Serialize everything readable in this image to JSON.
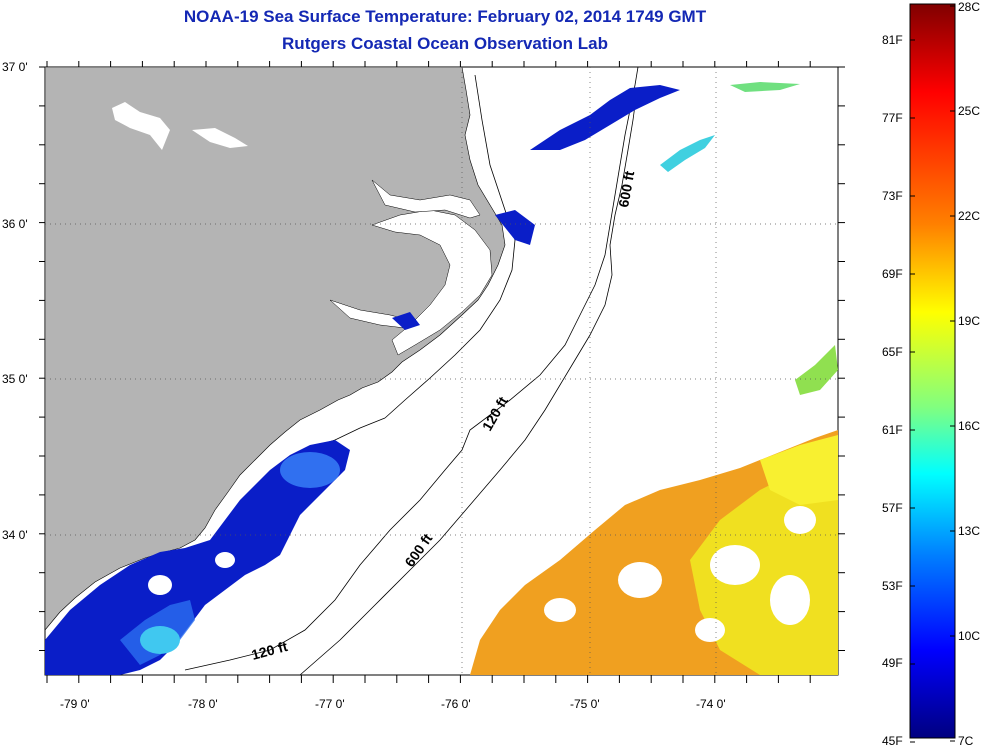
{
  "title": {
    "line1": "NOAA-19 Sea Surface Temperature:  February 02, 2014 1749 GMT",
    "line2": "Rutgers Coastal Ocean Observation Lab"
  },
  "map": {
    "lat_labels": [
      "37 0'",
      "36 0'",
      "35 0'",
      "34 0'"
    ],
    "lon_labels": [
      "-79 0'",
      "-78 0'",
      "-77 0'",
      "-76 0'",
      "-75 0'",
      "-74 0'"
    ],
    "depth_labels": [
      "600 ft",
      "120 ft",
      "600 ft",
      "120 ft"
    ]
  },
  "colorbar": {
    "fahrenheit": [
      "81F",
      "77F",
      "73F",
      "69F",
      "65F",
      "61F",
      "57F",
      "53F",
      "49F",
      "45F"
    ],
    "celsius": [
      "28C",
      "25C",
      "22C",
      "19C",
      "16C",
      "13C",
      "10C",
      "7C"
    ],
    "colors": [
      "#800000",
      "#ff0000",
      "#ff8000",
      "#ffff00",
      "#80ff80",
      "#00ffff",
      "#0080ff",
      "#0000ff",
      "#000080"
    ]
  },
  "colors": {
    "land": "#b4b4b4",
    "title": "#1428b4"
  }
}
